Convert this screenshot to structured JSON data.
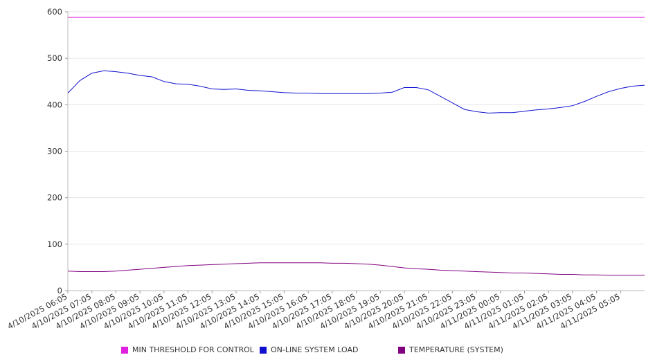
{
  "chart_data": {
    "type": "line",
    "title": "",
    "xlabel": "",
    "ylabel": "",
    "ylim": [
      0,
      600
    ],
    "y_ticks": [
      0,
      100,
      200,
      300,
      400,
      500,
      600
    ],
    "grid": true,
    "legend_position": "bottom",
    "x_tick_labels": [
      "4/10/2025 06:05",
      "4/10/2025 07:05",
      "4/10/2025 08:05",
      "4/10/2025 09:05",
      "4/10/2025 10:05",
      "4/10/2025 11:05",
      "4/10/2025 12:05",
      "4/10/2025 13:05",
      "4/10/2025 14:05",
      "4/10/2025 15:05",
      "4/10/2025 16:05",
      "4/10/2025 17:05",
      "4/10/2025 18:05",
      "4/10/2025 19:05",
      "4/10/2025 20:05",
      "4/10/2025 21:05",
      "4/10/2025 22:05",
      "4/10/2025 23:05",
      "4/11/2025 00:05",
      "4/11/2025 01:05",
      "4/11/2025 02:05",
      "4/11/2025 03:05",
      "4/11/2025 04:05",
      "4/11/2025 05:05"
    ],
    "x": [
      "4/10/2025 06:05",
      "4/10/2025 06:35",
      "4/10/2025 07:05",
      "4/10/2025 07:35",
      "4/10/2025 08:05",
      "4/10/2025 08:35",
      "4/10/2025 09:05",
      "4/10/2025 09:35",
      "4/10/2025 10:05",
      "4/10/2025 10:35",
      "4/10/2025 11:05",
      "4/10/2025 11:35",
      "4/10/2025 12:05",
      "4/10/2025 12:35",
      "4/10/2025 13:05",
      "4/10/2025 13:35",
      "4/10/2025 14:05",
      "4/10/2025 14:35",
      "4/10/2025 15:05",
      "4/10/2025 15:35",
      "4/10/2025 16:05",
      "4/10/2025 16:35",
      "4/10/2025 17:05",
      "4/10/2025 17:35",
      "4/10/2025 18:05",
      "4/10/2025 18:35",
      "4/10/2025 19:05",
      "4/10/2025 19:35",
      "4/10/2025 20:05",
      "4/10/2025 20:35",
      "4/10/2025 21:05",
      "4/10/2025 21:35",
      "4/10/2025 22:05",
      "4/10/2025 22:35",
      "4/10/2025 23:05",
      "4/10/2025 23:35",
      "4/11/2025 00:05",
      "4/11/2025 00:35",
      "4/11/2025 01:05",
      "4/11/2025 01:35",
      "4/11/2025 02:05",
      "4/11/2025 02:35",
      "4/11/2025 03:05",
      "4/11/2025 03:35",
      "4/11/2025 04:05",
      "4/11/2025 04:35",
      "4/11/2025 05:05",
      "4/11/2025 05:35",
      "4/11/2025 06:00"
    ],
    "series": [
      {
        "name": "MIN THRESHOLD FOR CONTROL",
        "color": "#e020e0",
        "values": [
          588,
          588,
          588,
          588,
          588,
          588,
          588,
          588,
          588,
          588,
          588,
          588,
          588,
          588,
          588,
          588,
          588,
          588,
          588,
          588,
          588,
          588,
          588,
          588,
          588,
          588,
          588,
          588,
          588,
          588,
          588,
          588,
          588,
          588,
          588,
          588,
          588,
          588,
          588,
          588,
          588,
          588,
          588,
          588,
          588,
          588,
          588,
          588,
          588
        ]
      },
      {
        "name": "ON-LINE SYSTEM LOAD",
        "color": "#1010d0",
        "values": [
          425,
          452,
          468,
          473,
          471,
          468,
          463,
          460,
          450,
          445,
          444,
          440,
          434,
          433,
          434,
          431,
          430,
          428,
          426,
          425,
          425,
          424,
          424,
          424,
          424,
          424,
          425,
          427,
          437,
          437,
          432,
          418,
          404,
          390,
          385,
          382,
          383,
          383,
          386,
          389,
          391,
          394,
          398,
          407,
          418,
          428,
          435,
          440,
          442
        ]
      },
      {
        "name": "TEMPERATURE (SYSTEM)",
        "color": "#800080",
        "values": [
          42,
          41,
          41,
          41,
          42,
          44,
          46,
          48,
          50,
          52,
          54,
          55,
          56,
          57,
          58,
          59,
          60,
          60,
          60,
          60,
          60,
          60,
          59,
          59,
          58,
          57,
          55,
          52,
          49,
          47,
          46,
          44,
          43,
          42,
          41,
          40,
          39,
          38,
          38,
          37,
          36,
          35,
          35,
          34,
          34,
          33,
          33,
          33,
          33
        ]
      }
    ]
  }
}
